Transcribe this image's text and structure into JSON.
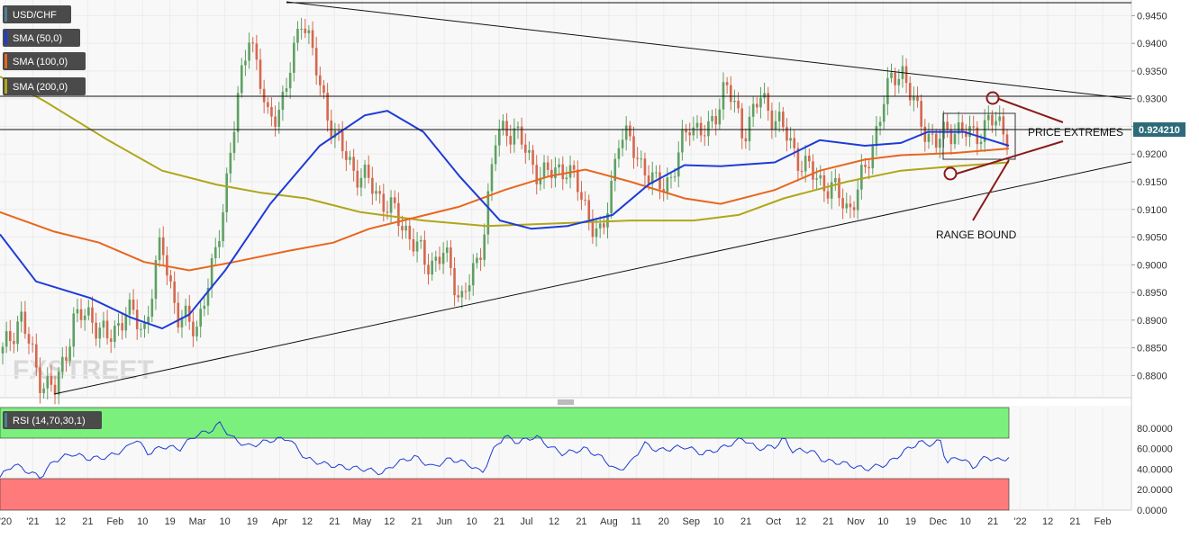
{
  "pair": "USD/CHF",
  "legend": [
    {
      "label": "USD/CHF",
      "color": "#4f7f8c"
    },
    {
      "label": "SMA (50,0)",
      "color": "#1f3bd6"
    },
    {
      "label": "SMA (100,0)",
      "color": "#e8661e"
    },
    {
      "label": "SMA (200,0)",
      "color": "#b0a61a"
    }
  ],
  "current_price": "0.924210",
  "watermark": "FXSTREET",
  "annotations": {
    "extremes": "PRICE EXTREMES",
    "range": "RANGE BOUND"
  },
  "rsi_label": "RSI (14,70,30,1)",
  "colors": {
    "up": "#5fa063",
    "down": "#d4684e",
    "sma50": "#1f3bd6",
    "sma100": "#e8661e",
    "sma200": "#b0a61a",
    "rsi": "#1f3bd6",
    "overbought": "#7cf07c",
    "oversold": "#ff7b7b",
    "annotation": "#8b1a1a",
    "price_tag": "#2e6b7a"
  },
  "chart_data": {
    "type": "candlestick",
    "y_ticks": [
      "0.9450",
      "0.9400",
      "0.9350",
      "0.9300",
      "0.9250",
      "0.9200",
      "0.9150",
      "0.9100",
      "0.9050",
      "0.9000",
      "0.8950",
      "0.8900",
      "0.8850",
      "0.8800"
    ],
    "ylim": [
      0.876,
      0.9475
    ],
    "x_ticks": [
      "'20",
      "'21",
      "12",
      "21",
      "Feb",
      "10",
      "19",
      "Mar",
      "10",
      "19",
      "Apr",
      "12",
      "21",
      "May",
      "12",
      "21",
      "Jun",
      "10",
      "21",
      "Jul",
      "12",
      "21",
      "Aug",
      "11",
      "20",
      "Sep",
      "10",
      "21",
      "Oct",
      "12",
      "21",
      "Nov",
      "10",
      "19",
      "Dec",
      "10",
      "21",
      "'22",
      "12",
      "21",
      "Feb"
    ],
    "price_waypoints": [
      [
        0.884,
        0.891,
        0.88,
        0.877,
        0.89,
        0.891,
        0.886,
        0.892,
        0.888,
        0.904,
        0.89,
        0.889,
        0.9,
        0.922,
        0.943,
        0.926,
        0.93,
        0.946,
        0.932,
        0.922,
        0.917,
        0.914,
        0.91,
        0.906,
        0.9,
        0.902,
        0.894,
        0.9,
        0.923,
        0.925,
        0.918,
        0.916,
        0.918,
        0.911,
        0.904,
        0.924,
        0.92,
        0.914,
        0.916,
        0.926,
        0.923,
        0.933,
        0.924,
        0.93,
        0.926,
        0.92,
        0.916,
        0.914,
        0.91,
        0.917,
        0.93,
        0.936,
        0.926,
        0.922,
        0.925,
        0.923,
        0.926,
        0.9242
      ]
    ],
    "sma50": [
      [
        0,
        0.9055
      ],
      [
        40,
        0.897
      ],
      [
        100,
        0.894
      ],
      [
        145,
        0.8905
      ],
      [
        180,
        0.8885
      ],
      [
        210,
        0.891
      ],
      [
        250,
        0.899
      ],
      [
        300,
        0.911
      ],
      [
        355,
        0.9215
      ],
      [
        405,
        0.927
      ],
      [
        430,
        0.9278
      ],
      [
        470,
        0.924
      ],
      [
        510,
        0.916
      ],
      [
        555,
        0.908
      ],
      [
        590,
        0.9065
      ],
      [
        630,
        0.907
      ],
      [
        680,
        0.909
      ],
      [
        720,
        0.9145
      ],
      [
        760,
        0.918
      ],
      [
        800,
        0.9178
      ],
      [
        860,
        0.9185
      ],
      [
        910,
        0.9225
      ],
      [
        960,
        0.9215
      ],
      [
        1000,
        0.922
      ],
      [
        1030,
        0.924
      ],
      [
        1070,
        0.924
      ],
      [
        1120,
        0.9215
      ]
    ],
    "sma100": [
      [
        0,
        0.9095
      ],
      [
        60,
        0.906
      ],
      [
        110,
        0.904
      ],
      [
        160,
        0.9005
      ],
      [
        210,
        0.899
      ],
      [
        260,
        0.9005
      ],
      [
        320,
        0.9025
      ],
      [
        370,
        0.904
      ],
      [
        410,
        0.9065
      ],
      [
        460,
        0.9085
      ],
      [
        510,
        0.9105
      ],
      [
        560,
        0.9135
      ],
      [
        610,
        0.916
      ],
      [
        650,
        0.9172
      ],
      [
        700,
        0.915
      ],
      [
        760,
        0.912
      ],
      [
        800,
        0.911
      ],
      [
        860,
        0.9135
      ],
      [
        910,
        0.917
      ],
      [
        960,
        0.919
      ],
      [
        1000,
        0.9198
      ],
      [
        1060,
        0.9202
      ],
      [
        1120,
        0.921
      ]
    ],
    "sma200": [
      [
        0,
        0.934
      ],
      [
        50,
        0.9295
      ],
      [
        120,
        0.9225
      ],
      [
        180,
        0.917
      ],
      [
        240,
        0.9145
      ],
      [
        290,
        0.913
      ],
      [
        340,
        0.912
      ],
      [
        400,
        0.9095
      ],
      [
        470,
        0.908
      ],
      [
        540,
        0.907
      ],
      [
        620,
        0.9075
      ],
      [
        700,
        0.908
      ],
      [
        770,
        0.908
      ],
      [
        820,
        0.909
      ],
      [
        870,
        0.912
      ],
      [
        940,
        0.915
      ],
      [
        1000,
        0.917
      ],
      [
        1060,
        0.9178
      ],
      [
        1120,
        0.9185
      ]
    ],
    "rsi": {
      "label": "RSI (14,70,30,1)",
      "ylim": [
        0,
        100
      ],
      "y_ticks": [
        "80.0000",
        "60.0000",
        "40.0000",
        "20.0000",
        "0.0000"
      ],
      "overbought": 70,
      "oversold": 30,
      "last_value": 50,
      "waypoints": [
        [
          0,
          32
        ],
        [
          15,
          45
        ],
        [
          30,
          38
        ],
        [
          45,
          32
        ],
        [
          60,
          48
        ],
        [
          80,
          55
        ],
        [
          100,
          50
        ],
        [
          120,
          52
        ],
        [
          140,
          60
        ],
        [
          150,
          70
        ],
        [
          165,
          55
        ],
        [
          180,
          62
        ],
        [
          200,
          60
        ],
        [
          215,
          72
        ],
        [
          235,
          78
        ],
        [
          245,
          85
        ],
        [
          255,
          72
        ],
        [
          275,
          62
        ],
        [
          300,
          68
        ],
        [
          320,
          70
        ],
        [
          340,
          50
        ],
        [
          360,
          45
        ],
        [
          380,
          42
        ],
        [
          405,
          40
        ],
        [
          425,
          36
        ],
        [
          440,
          46
        ],
        [
          460,
          52
        ],
        [
          480,
          42
        ],
        [
          500,
          50
        ],
        [
          520,
          45
        ],
        [
          535,
          36
        ],
        [
          550,
          62
        ],
        [
          560,
          72
        ],
        [
          575,
          66
        ],
        [
          595,
          72
        ],
        [
          610,
          62
        ],
        [
          625,
          55
        ],
        [
          650,
          60
        ],
        [
          670,
          50
        ],
        [
          685,
          38
        ],
        [
          700,
          46
        ],
        [
          715,
          65
        ],
        [
          730,
          58
        ],
        [
          760,
          62
        ],
        [
          780,
          55
        ],
        [
          800,
          60
        ],
        [
          825,
          70
        ],
        [
          840,
          60
        ],
        [
          860,
          62
        ],
        [
          870,
          70
        ],
        [
          880,
          58
        ],
        [
          900,
          58
        ],
        [
          915,
          48
        ],
        [
          935,
          46
        ],
        [
          960,
          40
        ],
        [
          985,
          45
        ],
        [
          1005,
          58
        ],
        [
          1020,
          66
        ],
        [
          1035,
          64
        ],
        [
          1045,
          68
        ],
        [
          1050,
          46
        ],
        [
          1065,
          52
        ],
        [
          1080,
          42
        ],
        [
          1095,
          52
        ],
        [
          1110,
          48
        ],
        [
          1120,
          52
        ]
      ]
    }
  }
}
